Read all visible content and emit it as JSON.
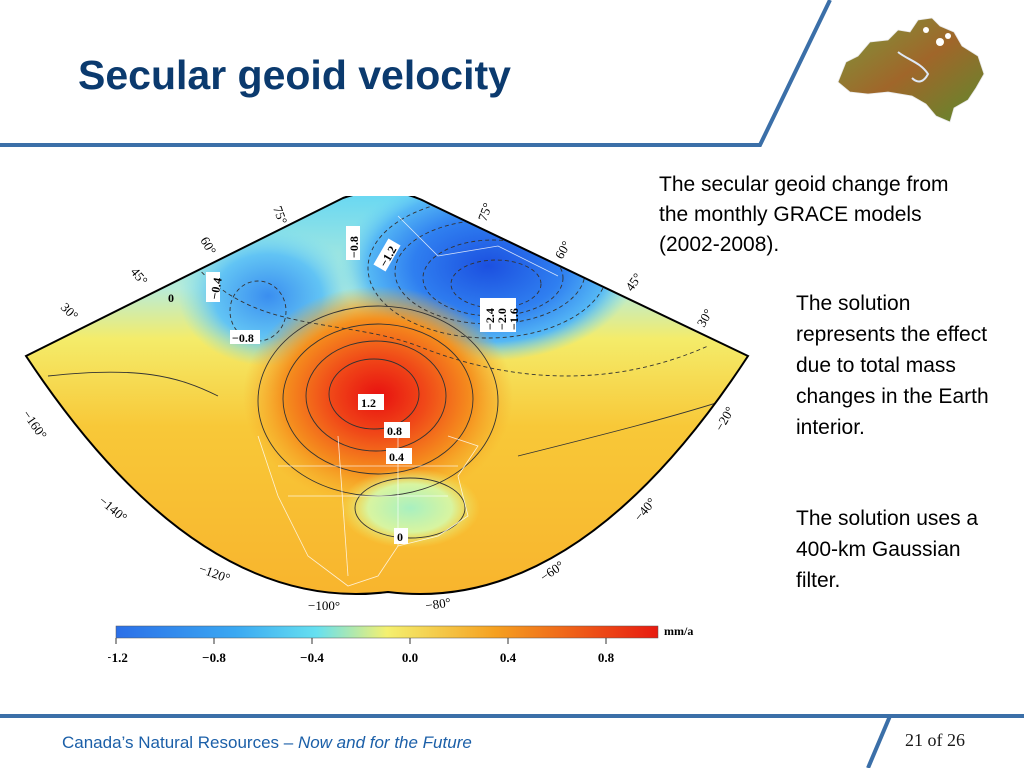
{
  "slide": {
    "title": "Secular geoid velocity",
    "description": "The secular geoid change from the monthly GRACE models (2002-2008).",
    "solution_text": "The solution represents the effect due to total mass changes in the Earth interior.",
    "filter_text": "The solution uses a 400-km Gaussian filter.",
    "page_number": "21 of 26"
  },
  "footer": {
    "org": "Canada’s Natural Resources – ",
    "tagline": "Now and for the Future"
  },
  "map": {
    "lat_labels": [
      "75°",
      "60°",
      "45°",
      "30°",
      "75°",
      "60°",
      "45°",
      "30°"
    ],
    "lon_labels": [
      "−160°",
      "−140°",
      "−120°",
      "−100°",
      "−80°",
      "−60°",
      "−40°",
      "−20°"
    ],
    "contour_labels": [
      "−0.8",
      "−1.2",
      "−0.4",
      "0",
      "−0.8",
      "−2.4",
      "−2.0",
      "−1.6",
      "1.2",
      "0.8",
      "0.4",
      "0"
    ]
  },
  "colorbar": {
    "unit": "mm/a",
    "ticks": [
      "−1.2",
      "−0.8",
      "−0.4",
      "0.0",
      "0.4",
      "0.8"
    ],
    "colors": {
      "min": "#2b6fe8",
      "mid_low": "#66e0f0",
      "zero": "#f4f070",
      "mid_high": "#f5a020",
      "max": "#e81a10"
    }
  },
  "colors": {
    "title": "#0b3a6e",
    "rule": "#3b6fa8",
    "footer_text": "#1b5fa8"
  }
}
